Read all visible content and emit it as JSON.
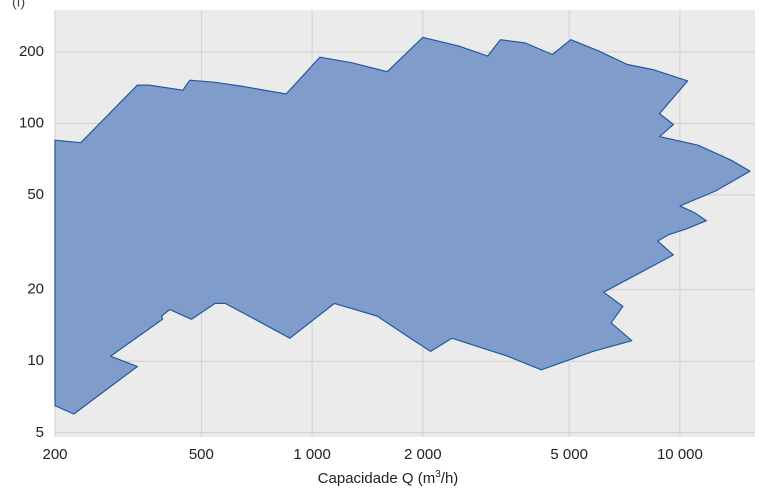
{
  "chart_data": {
    "type": "area",
    "title": "",
    "top_label": "(f)",
    "xlabel": "Capacidade Q (m3/h)",
    "xlabel_parts": {
      "pre": "Capacidade Q (m",
      "sup": "3",
      "post": "/h)"
    },
    "ylabel": "",
    "x_scale": "log",
    "y_scale": "log",
    "xlim": [
      200,
      16000
    ],
    "ylim": [
      4.8,
      300
    ],
    "grid": true,
    "legend": "none",
    "x_ticks": [
      {
        "value": 200,
        "label": "200"
      },
      {
        "value": 500,
        "label": "500"
      },
      {
        "value": 1000,
        "label": "1 000"
      },
      {
        "value": 2000,
        "label": "2 000"
      },
      {
        "value": 5000,
        "label": "5 000"
      },
      {
        "value": 10000,
        "label": "10 000"
      }
    ],
    "y_ticks": [
      {
        "value": 5,
        "label": "5"
      },
      {
        "value": 10,
        "label": "10"
      },
      {
        "value": 20,
        "label": "20"
      },
      {
        "value": 50,
        "label": "50"
      },
      {
        "value": 100,
        "label": "100"
      },
      {
        "value": 200,
        "label": "200"
      }
    ],
    "colors": {
      "fill": "#809ccb",
      "stroke": "#1e5aa0",
      "plot_bg": "#ebebeb",
      "grid": "#d0d0d0"
    },
    "region": [
      [
        200,
        85
      ],
      [
        235,
        83
      ],
      [
        335,
        145
      ],
      [
        360,
        145
      ],
      [
        445,
        138
      ],
      [
        465,
        152
      ],
      [
        545,
        149
      ],
      [
        650,
        143
      ],
      [
        850,
        133
      ],
      [
        1050,
        190
      ],
      [
        1280,
        180
      ],
      [
        1600,
        165
      ],
      [
        2000,
        230
      ],
      [
        2500,
        212
      ],
      [
        3000,
        192
      ],
      [
        3250,
        225
      ],
      [
        3800,
        218
      ],
      [
        4500,
        195
      ],
      [
        5050,
        225
      ],
      [
        6000,
        202
      ],
      [
        7200,
        177
      ],
      [
        8500,
        168
      ],
      [
        10500,
        151
      ],
      [
        8800,
        110
      ],
      [
        9600,
        99
      ],
      [
        8800,
        88
      ],
      [
        11200,
        81
      ],
      [
        13800,
        70
      ],
      [
        15500,
        63
      ],
      [
        12500,
        52
      ],
      [
        10000,
        45
      ],
      [
        11000,
        42
      ],
      [
        11800,
        39
      ],
      [
        10400,
        36
      ],
      [
        9300,
        34
      ],
      [
        9000,
        33
      ],
      [
        8700,
        32
      ],
      [
        9600,
        28
      ],
      [
        6200,
        19.5
      ],
      [
        7000,
        17
      ],
      [
        6500,
        14.5
      ],
      [
        7400,
        12.2
      ],
      [
        5800,
        11
      ],
      [
        4200,
        9.2
      ],
      [
        3400,
        10.5
      ],
      [
        2400,
        12.5
      ],
      [
        2100,
        11
      ],
      [
        1850,
        12.5
      ],
      [
        1500,
        15.5
      ],
      [
        1150,
        17.5
      ],
      [
        870,
        12.5
      ],
      [
        700,
        15
      ],
      [
        580,
        17.5
      ],
      [
        545,
        17.5
      ],
      [
        470,
        15
      ],
      [
        410,
        16.5
      ],
      [
        390,
        15.5
      ],
      [
        392,
        15
      ],
      [
        283,
        10.5
      ],
      [
        335,
        9.5
      ],
      [
        225,
        6
      ],
      [
        200,
        6.5
      ]
    ]
  }
}
